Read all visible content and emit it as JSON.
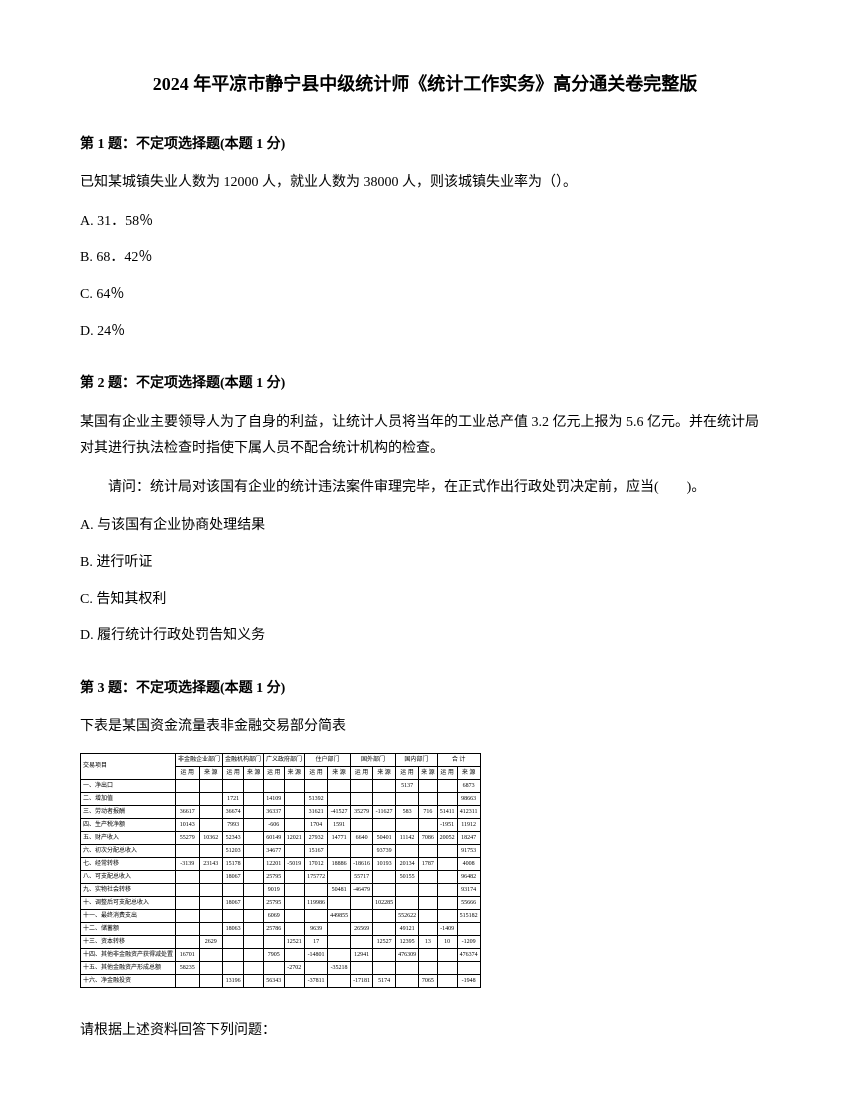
{
  "title": "2024 年平凉市静宁县中级统计师《统计工作实务》高分通关卷完整版",
  "q1": {
    "header": "第 1 题：不定项选择题(本题 1 分)",
    "text": "已知某城镇失业人数为 12000 人，就业人数为 38000 人，则该城镇失业率为（）。",
    "optA": "A. 31．58％",
    "optB": "B. 68．42％",
    "optC": "C. 64％",
    "optD": "D. 24％"
  },
  "q2": {
    "header": "第 2 题：不定项选择题(本题 1 分)",
    "text1": "某国有企业主要领导人为了自身的利益，让统计人员将当年的工业总产值 3.2 亿元上报为 5.6 亿元。并在统计局对其进行执法检查时指使下属人员不配合统计机构的检查。",
    "text2": "请问：统计局对该国有企业的统计违法案件审理完毕，在正式作出行政处罚决定前，应当(　　)。",
    "optA": "A. 与该国有企业协商处理结果",
    "optB": "B. 进行听证",
    "optC": "C. 告知其权利",
    "optD": "D. 履行统计行政处罚告知义务"
  },
  "q3": {
    "header": "第 3 题：不定项选择题(本题 1 分)",
    "text": "下表是某国资金流量表非金融交易部分简表",
    "follow": "请根据上述资料回答下列问题：",
    "table": {
      "headers": {
        "h1": "交易项目",
        "h2": "非金融企业部门",
        "h3": "金融机构部门",
        "h4": "广义政府部门",
        "h5": "住户部门",
        "h6": "国外部门",
        "h7": "国内部门",
        "h8": "合 计",
        "sub1": "运 用",
        "sub2": "来 源"
      },
      "rows": [
        {
          "label": "一、净出口",
          "c1": "",
          "c2": "",
          "c3": "",
          "c4": "",
          "c5": "",
          "c6": "",
          "c7": "",
          "c8": "",
          "c9": "",
          "c10": "",
          "c11": "5137",
          "c12": "",
          "c13": "",
          "c14": "6873"
        },
        {
          "label": "二、增加值",
          "c1": "",
          "c2": "",
          "c3": "1721",
          "c4": "",
          "c5": "14109",
          "c6": "",
          "c7": "51392",
          "c8": "",
          "c9": "",
          "c10": "",
          "c11": "",
          "c12": "",
          "c13": "",
          "c14": "98663"
        },
        {
          "label": "三、劳动者报酬",
          "c1": "36617",
          "c2": "",
          "c3": "36674",
          "c4": "",
          "c5": "36337",
          "c6": "",
          "c7": "31621",
          "c8": "-41527",
          "c9": "35279",
          "c10": "-11627",
          "c11": "583",
          "c12": "716",
          "c13": "51411",
          "c14": "412311"
        },
        {
          "label": "四、生产税净额",
          "c1": "10143",
          "c2": "",
          "c3": "7993",
          "c4": "",
          "c5": "-606",
          "c6": "",
          "c7": "1704",
          "c8": "1591",
          "c9": "",
          "c10": "",
          "c11": "",
          "c12": "",
          "c13": "-1951",
          "c14": "11912"
        },
        {
          "label": "五、财产收入",
          "c1": "55279",
          "c2": "10362",
          "c3": "52343",
          "c4": "",
          "c5": "60149",
          "c6": "12021",
          "c7": "27932",
          "c8": "14771",
          "c9": "6640",
          "c10": "50401",
          "c11": "11142",
          "c12": "7086",
          "c13": "20052",
          "c14": "18247",
          "c15": "62241"
        },
        {
          "label": "六、初次分配总收入",
          "c1": "",
          "c2": "",
          "c3": "51203",
          "c4": "",
          "c5": "34677",
          "c6": "",
          "c7": "15167",
          "c8": "",
          "c9": "",
          "c10": "93739",
          "c11": "",
          "c12": "",
          "c13": "",
          "c14": "91753"
        },
        {
          "label": "七、经常转移",
          "c1": "-3139",
          "c2": "23143",
          "c3": "15178",
          "c4": "",
          "c5": "12201",
          "c6": "-5019",
          "c7": "17012",
          "c8": "18886",
          "c9": "-18616",
          "c10": "10193",
          "c11": "20134",
          "c12": "1787",
          "c13": "",
          "c14": "4008",
          "c15": "28219",
          "c16": "217694"
        },
        {
          "label": "八、可支配总收入",
          "c1": "",
          "c2": "",
          "c3": "18067",
          "c4": "",
          "c5": "25795",
          "c6": "",
          "c7": "175772",
          "c8": "",
          "c9": "55717",
          "c10": "",
          "c11": "50155",
          "c12": "",
          "c13": "",
          "c14": "96482"
        },
        {
          "label": "九、实物社会转移",
          "c1": "",
          "c2": "",
          "c3": "",
          "c4": "",
          "c5": "9019",
          "c6": "",
          "c7": "",
          "c8": "50481",
          "c9": "-46479",
          "c10": "",
          "c11": "",
          "c12": "",
          "c13": "",
          "c14": "93174",
          "c15": "9319"
        },
        {
          "label": "十、调整后可支配总收入",
          "c1": "",
          "c2": "",
          "c3": "18067",
          "c4": "",
          "c5": "25795",
          "c6": "",
          "c7": "119986",
          "c8": "",
          "c9": "",
          "c10": "102285",
          "c11": "",
          "c12": "",
          "c13": "",
          "c14": "55666"
        },
        {
          "label": "十一、最终消费支出",
          "c1": "",
          "c2": "",
          "c3": "",
          "c4": "",
          "c5": "6069",
          "c6": "",
          "c7": "",
          "c8": "449855",
          "c9": "",
          "c10": "",
          "c11": "552622",
          "c12": "",
          "c13": "",
          "c14": "515182"
        },
        {
          "label": "十二、储蓄额",
          "c1": "",
          "c2": "",
          "c3": "18063",
          "c4": "",
          "c5": "25786",
          "c6": "",
          "c7": "9639",
          "c8": "",
          "c9": "26569",
          "c10": "",
          "c11": "49121",
          "c12": "",
          "c13": "-1409",
          "c14": "",
          "c15": "43513"
        },
        {
          "label": "十三、资本转移",
          "c1": "",
          "c2": "2629",
          "c3": "",
          "c4": "",
          "c5": "",
          "c6": "12521",
          "c7": "17",
          "c8": "",
          "c9": "",
          "c10": "12527",
          "c11": "12395",
          "c12": "13",
          "c13": "10",
          "c14": "-1209",
          "c15": "12542"
        },
        {
          "label": "十四、其他非金融资产获得减处置",
          "c1": "16701",
          "c2": "",
          "c3": "",
          "c4": "",
          "c5": "7905",
          "c6": "",
          "c7": "-14801",
          "c8": "",
          "c9": "12941",
          "c10": "",
          "c11": "476309",
          "c12": "",
          "c13": "",
          "c14": "476374"
        },
        {
          "label": "十五、其他金融资产形成总额",
          "c1": "58235",
          "c2": "",
          "c3": "",
          "c4": "",
          "c5": "",
          "c6": "-2702",
          "c7": "",
          "c8": "-35218",
          "c9": "",
          "c10": "",
          "c11": "",
          "c12": "",
          "c13": "",
          "c14": ""
        },
        {
          "label": "十六、净金融投资",
          "c1": "",
          "c2": "",
          "c3": "13196",
          "c4": "",
          "c5": "56343",
          "c6": "",
          "c7": "-37811",
          "c8": "",
          "c9": "-17181",
          "c10": "5174",
          "c11": "",
          "c12": "7065",
          "c13": "",
          "c14": "-1948"
        }
      ]
    }
  }
}
